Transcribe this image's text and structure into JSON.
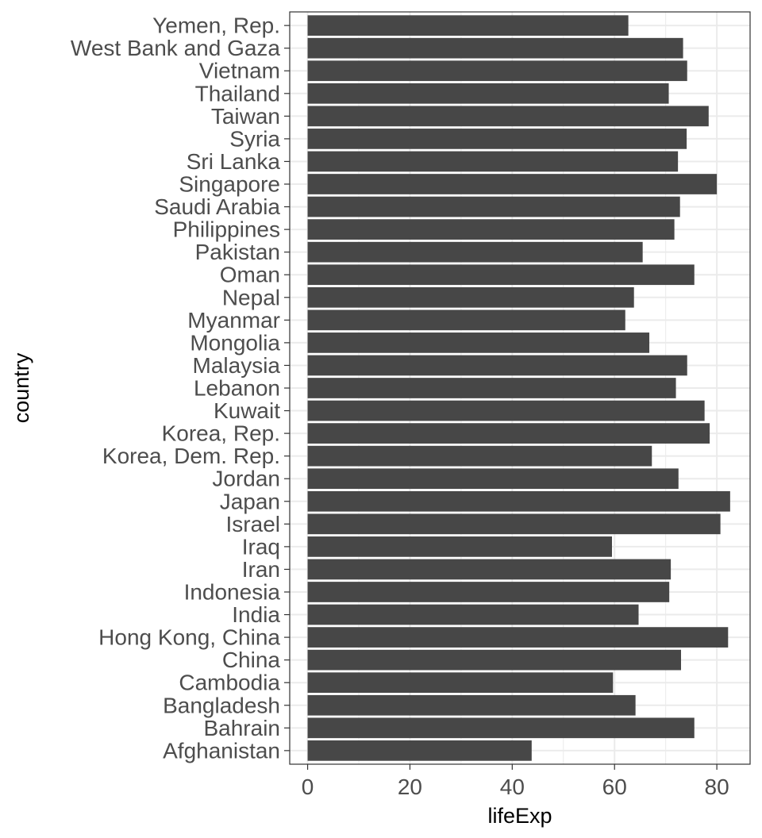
{
  "chart_data": {
    "type": "bar",
    "orientation": "horizontal",
    "xlabel": "lifeExp",
    "ylabel": "country",
    "xlim": [
      -3.5,
      86.5
    ],
    "xticks": [
      0,
      20,
      40,
      60,
      80
    ],
    "xtick_labels": [
      "0",
      "20",
      "40",
      "60",
      "80"
    ],
    "grid": true,
    "theme": "bw",
    "bar_color": "#474747",
    "categories": [
      "Afghanistan",
      "Bahrain",
      "Bangladesh",
      "Cambodia",
      "China",
      "Hong Kong, China",
      "India",
      "Indonesia",
      "Iran",
      "Iraq",
      "Israel",
      "Japan",
      "Jordan",
      "Korea, Dem. Rep.",
      "Korea, Rep.",
      "Kuwait",
      "Lebanon",
      "Malaysia",
      "Mongolia",
      "Myanmar",
      "Nepal",
      "Oman",
      "Pakistan",
      "Philippines",
      "Saudi Arabia",
      "Singapore",
      "Sri Lanka",
      "Syria",
      "Taiwan",
      "Thailand",
      "Vietnam",
      "West Bank and Gaza",
      "Yemen, Rep."
    ],
    "values": [
      43.8,
      75.6,
      64.1,
      59.7,
      73.0,
      82.2,
      64.7,
      70.7,
      71.0,
      59.5,
      80.7,
      82.6,
      72.5,
      67.3,
      78.6,
      77.6,
      72.0,
      74.2,
      66.8,
      62.1,
      63.8,
      75.6,
      65.5,
      71.7,
      72.8,
      80.0,
      72.4,
      74.1,
      78.4,
      70.6,
      74.2,
      73.4,
      62.7
    ]
  }
}
